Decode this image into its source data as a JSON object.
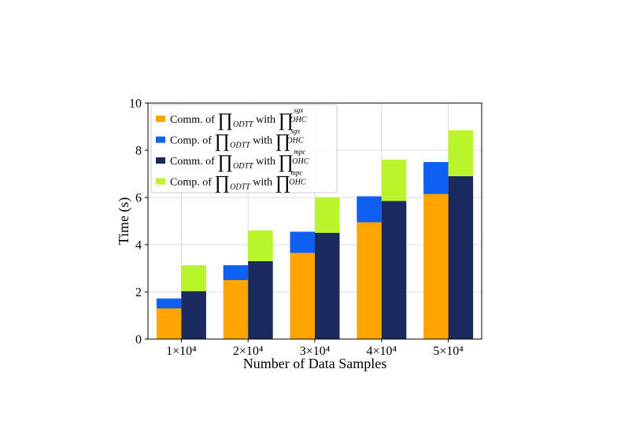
{
  "chart_data": {
    "type": "bar",
    "stacked_groups": true,
    "categories": [
      "1×10⁴",
      "2×10⁴",
      "3×10⁴",
      "4×10⁴",
      "5×10⁴"
    ],
    "xlabel": "Number of Data Samples",
    "ylabel": "Time (s)",
    "ylim": [
      0,
      10
    ],
    "yticks": [
      0,
      2,
      4,
      6,
      8,
      10
    ],
    "grid": true,
    "legend_position": "top-left",
    "bars": [
      {
        "name": "sgx",
        "segments": [
          {
            "series": "Comm. of ∏ODTT with ∏OHC sgx",
            "values": [
              1.3,
              2.5,
              3.65,
              4.95,
              6.15
            ]
          },
          {
            "series": "Comp. of ∏ODTT with ∏OHC sgx",
            "values": [
              0.42,
              0.63,
              0.9,
              1.1,
              1.35
            ]
          }
        ]
      },
      {
        "name": "mpc",
        "segments": [
          {
            "series": "Comm. of ∏ODTT with ∏OHC mpc",
            "values": [
              2.03,
              3.3,
              4.5,
              5.85,
              6.9
            ]
          },
          {
            "series": "Comp. of ∏ODTT with ∏OHC mpc",
            "values": [
              1.1,
              1.3,
              1.5,
              1.75,
              1.95
            ]
          }
        ]
      }
    ],
    "legend": [
      {
        "prefix": "Comm. of",
        "sub1": "ODTT",
        "mid": "with",
        "sup": "sgx",
        "sub2": "OHC",
        "color": "#FFA500"
      },
      {
        "prefix": "Comp. of",
        "sub1": "ODTT",
        "mid": "with",
        "sup": "sgx",
        "sub2": "OHC",
        "color": "#0F5FF2"
      },
      {
        "prefix": "Comm. of",
        "sub1": "ODTT",
        "mid": "with",
        "sup": "mpc",
        "sub2": "OHC",
        "color": "#1B2A5C"
      },
      {
        "prefix": "Comp. of",
        "sub1": "ODTT",
        "mid": "with",
        "sup": "mpc",
        "sub2": "OHC",
        "color": "#B8F52A"
      }
    ],
    "colors": {
      "comm_sgx": "#FFA500",
      "comp_sgx": "#0F5FF2",
      "comm_mpc": "#1B2A5C",
      "comp_mpc": "#B8F52A",
      "grid": "#D0D0D0"
    },
    "product_symbol": "∏"
  }
}
